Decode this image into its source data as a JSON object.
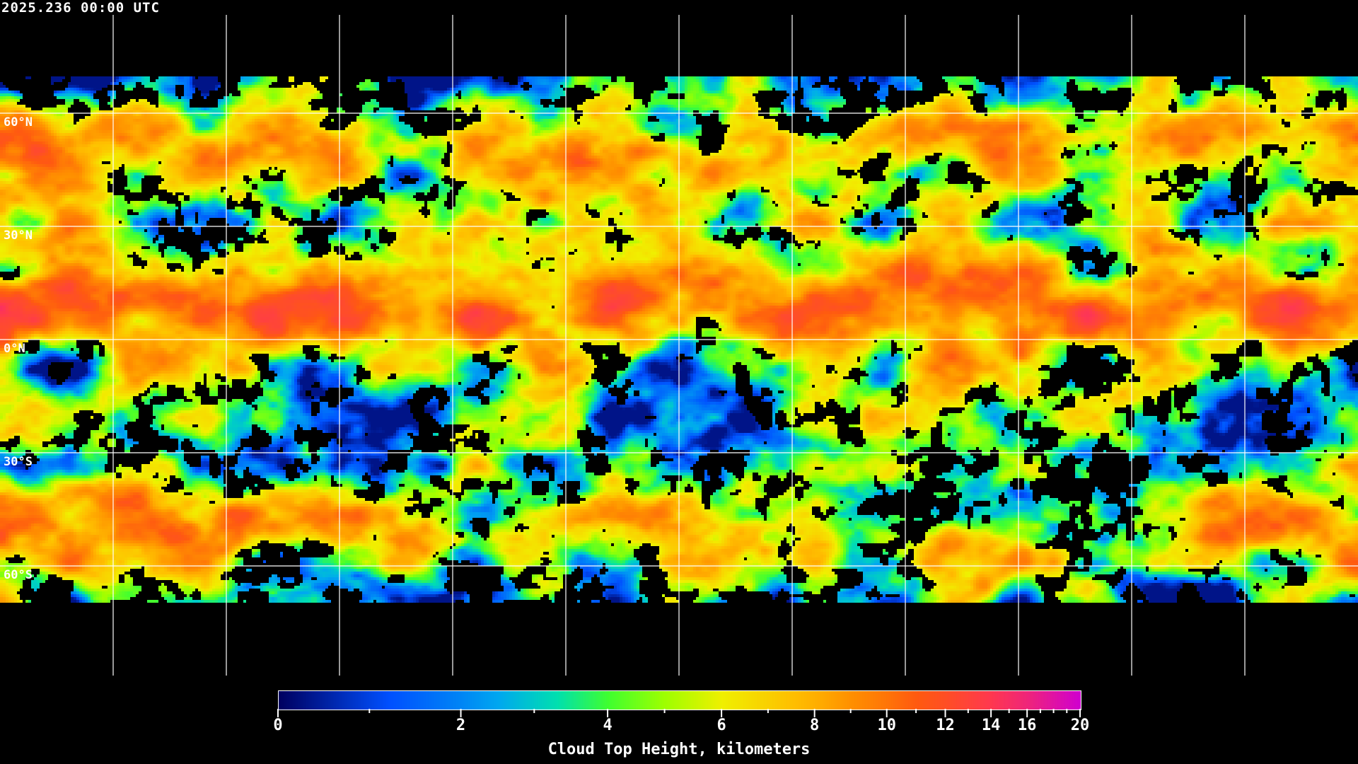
{
  "header": {
    "title": "2025.236 00:00 UTC"
  },
  "map": {
    "projection": "equirectangular",
    "longitude_grid_step_deg": 30,
    "latitude_labels": [
      "60°N",
      "30°N",
      "0°N",
      "30°S",
      "60°S"
    ],
    "latitudes": [
      60,
      30,
      0,
      -30,
      -60
    ],
    "coastlines_color": "#ffffff",
    "gridline_color": "#ffffff",
    "no_data_color": "#000000"
  },
  "colorbar": {
    "title": "Cloud Top Height, kilometers",
    "unit": "kilometers",
    "range": [
      0,
      20
    ],
    "major_ticks": [
      {
        "value": 0,
        "label": "0"
      },
      {
        "value": 2,
        "label": "2"
      },
      {
        "value": 4,
        "label": "4"
      },
      {
        "value": 6,
        "label": "6"
      },
      {
        "value": 8,
        "label": "8"
      },
      {
        "value": 10,
        "label": "10"
      },
      {
        "value": 12,
        "label": "12"
      },
      {
        "value": 14,
        "label": "14"
      },
      {
        "value": 16,
        "label": "16"
      },
      {
        "value": 20,
        "label": "20"
      }
    ],
    "minor_ticks": [
      1,
      3,
      5,
      7,
      9,
      11,
      13,
      15,
      17,
      18,
      19
    ],
    "colors": [
      {
        "value": 0,
        "color": "#000060"
      },
      {
        "value": 1.2,
        "color": "#0050ff"
      },
      {
        "value": 2.5,
        "color": "#00a8f0"
      },
      {
        "value": 3.3,
        "color": "#00e0b0"
      },
      {
        "value": 4,
        "color": "#40ff30"
      },
      {
        "value": 5,
        "color": "#a0ff00"
      },
      {
        "value": 6,
        "color": "#f0f000"
      },
      {
        "value": 7.5,
        "color": "#ffc000"
      },
      {
        "value": 9,
        "color": "#ff9000"
      },
      {
        "value": 11,
        "color": "#ff5a10"
      },
      {
        "value": 14,
        "color": "#ff3850"
      },
      {
        "value": 20,
        "color": "#d000d0"
      }
    ]
  }
}
